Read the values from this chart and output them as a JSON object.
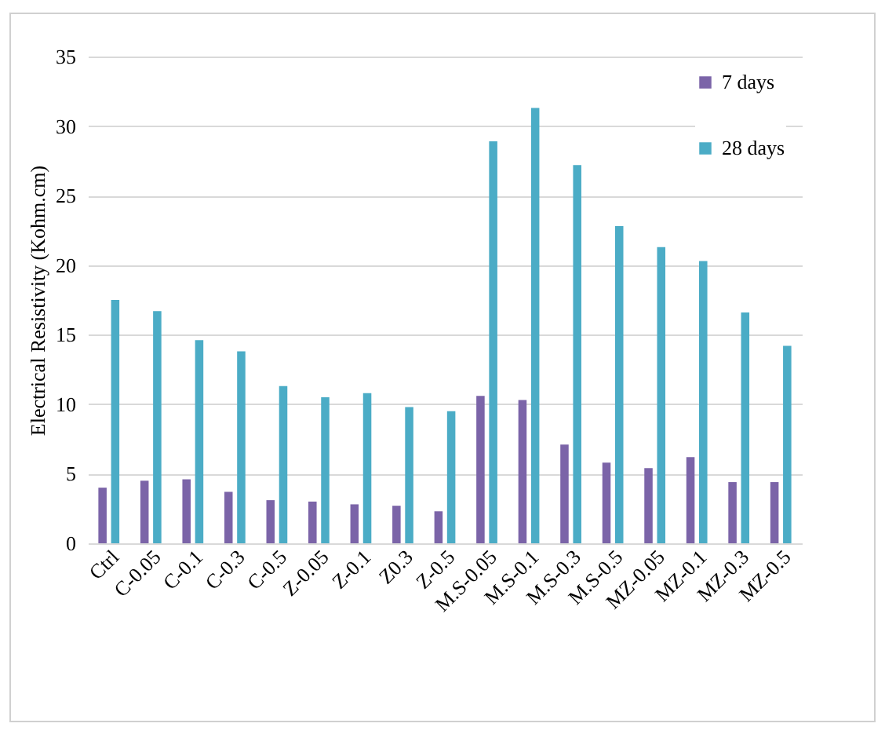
{
  "chart_data": {
    "type": "bar",
    "ylabel": "Electrical Resistivity (Kohm.cm)",
    "categories": [
      "Ctrl",
      "C-0.05",
      "C-0.1",
      "C-0.3",
      "C-0.5",
      "Z-0.05",
      "Z-0.1",
      "Z0.3",
      "Z-0.5",
      "M.S-0.05",
      "M.S-0.1",
      "M.S-0.3",
      "M.S-0.5",
      "MZ-0.05",
      "MZ-0.1",
      "MZ-0.3",
      "MZ-0.5"
    ],
    "series": [
      {
        "name": "7 days",
        "color": "#7b64a8",
        "values": [
          4.0,
          4.5,
          4.6,
          3.7,
          3.1,
          3.0,
          2.8,
          2.7,
          2.3,
          10.6,
          10.3,
          7.1,
          5.8,
          5.4,
          6.2,
          4.4,
          4.4
        ]
      },
      {
        "name": "28 days",
        "color": "#4bacc6",
        "values": [
          17.5,
          16.7,
          14.6,
          13.8,
          11.3,
          10.5,
          10.8,
          9.8,
          9.5,
          28.9,
          31.3,
          27.2,
          22.8,
          21.3,
          20.3,
          16.6,
          14.2
        ]
      }
    ],
    "ylim": [
      0,
      35
    ],
    "yticks": [
      0,
      5,
      10,
      15,
      20,
      25,
      30,
      35
    ],
    "grid": "y",
    "legend": "top right"
  }
}
